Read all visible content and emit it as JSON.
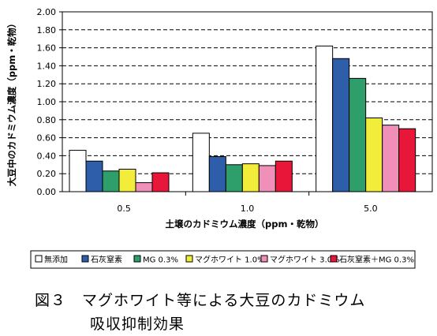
{
  "chart_data": {
    "type": "bar",
    "title": "",
    "xlabel": "土壌のカドミウム濃度（ppm・乾物）",
    "ylabel": "大豆中のカドミウム濃度（ppm・乾物）",
    "ylim": [
      0,
      2.0
    ],
    "yticks": [
      "0.00",
      "0.20",
      "0.40",
      "0.60",
      "0.80",
      "1.00",
      "1.20",
      "1.40",
      "1.60",
      "1.80",
      "2.00"
    ],
    "grid": "horizontal dashed",
    "legend_position": "bottom",
    "categories": [
      "0.5",
      "1.0",
      "5.0"
    ],
    "series": [
      {
        "name": "無添加",
        "color": "#ffffff",
        "values": [
          0.46,
          0.65,
          1.62
        ]
      },
      {
        "name": "石灰窒素",
        "color": "#2e5eaa",
        "values": [
          0.34,
          0.39,
          1.48
        ]
      },
      {
        "name": "MG 0.3%",
        "color": "#2e9e6a",
        "values": [
          0.23,
          0.3,
          1.26
        ]
      },
      {
        "name": "マグホワイト 1.0%",
        "color": "#f2ed3a",
        "values": [
          0.25,
          0.31,
          0.82
        ]
      },
      {
        "name": "マグホワイト 3.0%",
        "color": "#f090b8",
        "values": [
          0.1,
          0.29,
          0.74
        ]
      },
      {
        "name": "石灰窒素＋MG 0.3%",
        "color": "#e8173a",
        "values": [
          0.21,
          0.34,
          0.7
        ]
      }
    ]
  },
  "caption": {
    "line1": "図３　マグホワイト等による大豆のカドミウム",
    "line2": "吸収抑制効果"
  }
}
